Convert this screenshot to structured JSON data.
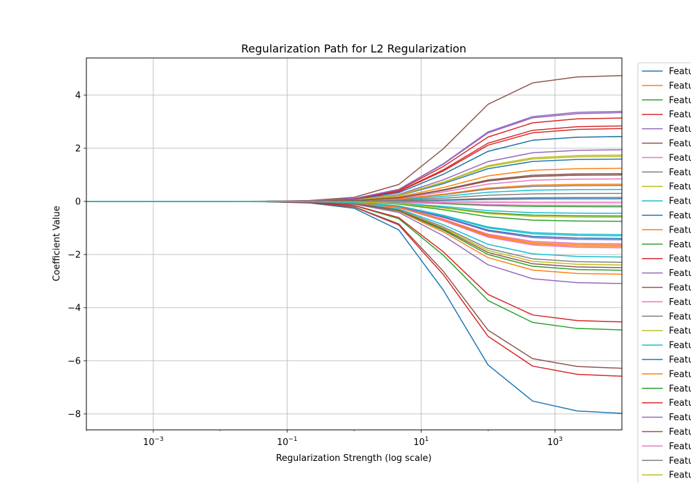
{
  "chart_data": {
    "type": "line",
    "title": "Regularization Path for L2 Regularization",
    "xlabel": "Regularization Strength (log scale)",
    "ylabel": "Coefficient Value",
    "xscale": "log",
    "xlim": [
      0.0001,
      10000
    ],
    "ylim": [
      -8.6,
      5.4
    ],
    "x_tick_values": [
      0.001,
      0.1,
      10,
      1000
    ],
    "x_tick_labels": [
      {
        "base": "10",
        "exp": "−3"
      },
      {
        "base": "10",
        "exp": "−1"
      },
      {
        "base": "10",
        "exp": "1"
      },
      {
        "base": "10",
        "exp": "3"
      }
    ],
    "y_ticks": [
      4,
      2,
      0,
      -2,
      -4,
      -6,
      -8
    ],
    "y_tick_labels": [
      "4",
      "2",
      "0",
      "−2",
      "−4",
      "−6",
      "−8"
    ],
    "grid": true,
    "legend_location": "right outside plot (clipped)",
    "colors": [
      "#1f77b4",
      "#ff7f0e",
      "#2ca02c",
      "#d62728",
      "#9467bd",
      "#8c564b",
      "#e377c2",
      "#7f7f7f",
      "#bcbd22",
      "#17becf"
    ],
    "x": [
      0.0001,
      0.000464,
      0.00215,
      0.01,
      0.0464,
      0.215,
      1,
      4.64,
      21.5,
      100,
      464,
      2150,
      10000
    ],
    "series": [
      {
        "name": "Featu",
        "final": -8.0
      },
      {
        "name": "Featu",
        "final": -2.75
      },
      {
        "name": "Featu",
        "final": -4.85
      },
      {
        "name": "Featu",
        "final": -6.6
      },
      {
        "name": "Featu",
        "final": -3.1
      },
      {
        "name": "Featu",
        "final": -6.3
      },
      {
        "name": "Featu",
        "final": -1.6
      },
      {
        "name": "Featu",
        "final": -2.3
      },
      {
        "name": "Featu",
        "final": -2.4
      },
      {
        "name": "Featu",
        "final": -2.1
      },
      {
        "name": "Featu",
        "final": 1.6
      },
      {
        "name": "Featu",
        "final": 1.25
      },
      {
        "name": "Featu",
        "final": -0.75
      },
      {
        "name": "Featu",
        "final": 3.15
      },
      {
        "name": "Featu",
        "final": 3.35
      },
      {
        "name": "Featu",
        "final": 4.75
      },
      {
        "name": "Featu",
        "final": 0.85
      },
      {
        "name": "Featu",
        "final": 1.0
      },
      {
        "name": "Featu",
        "final": 2.45
      },
      {
        "name": "Featu",
        "final": 0.45
      },
      {
        "name": "Featu",
        "final": -1.4
      },
      {
        "name": "Featu",
        "final": -1.7
      },
      {
        "name": "Featu",
        "final": -2.6
      },
      {
        "name": "Featu",
        "final": -4.55
      },
      {
        "name": "Featu",
        "final": 1.95
      },
      {
        "name": "Featu",
        "final": -2.5
      },
      {
        "name": "Featu",
        "final": -0.05
      },
      {
        "name": "Featu",
        "final": 0.6
      },
      {
        "name": "Featu",
        "final": 1.7
      },
      {
        "name": "Featu",
        "final": -1.3
      },
      {
        "name": "Featu",
        "final": 0.1
      },
      {
        "name": "Featu",
        "final": 0.65
      },
      {
        "name": "Featu",
        "final": -0.55
      },
      {
        "name": "Featu",
        "final": 2.75
      },
      {
        "name": "Featu",
        "final": -1.45
      },
      {
        "name": "Featu",
        "final": 1.05
      },
      {
        "name": "Featu",
        "final": -1.75
      },
      {
        "name": "Featu",
        "final": 0.3
      },
      {
        "name": "Featu",
        "final": 1.75
      },
      {
        "name": "Featu",
        "final": -0.45
      },
      {
        "name": "Featu",
        "final": 2.45
      },
      {
        "name": "Featu",
        "final": -1.65
      },
      {
        "name": "Featu",
        "final": -0.2
      },
      {
        "name": "Featu",
        "final": 2.85
      },
      {
        "name": "Featu",
        "final": 3.4
      },
      {
        "name": "Featu",
        "final": 1.0
      },
      {
        "name": "Featu",
        "final": -0.15
      },
      {
        "name": "Featu",
        "final": 0.15
      },
      {
        "name": "Featu",
        "final": -0.6
      },
      {
        "name": "Featu",
        "final": -1.25
      }
    ]
  }
}
